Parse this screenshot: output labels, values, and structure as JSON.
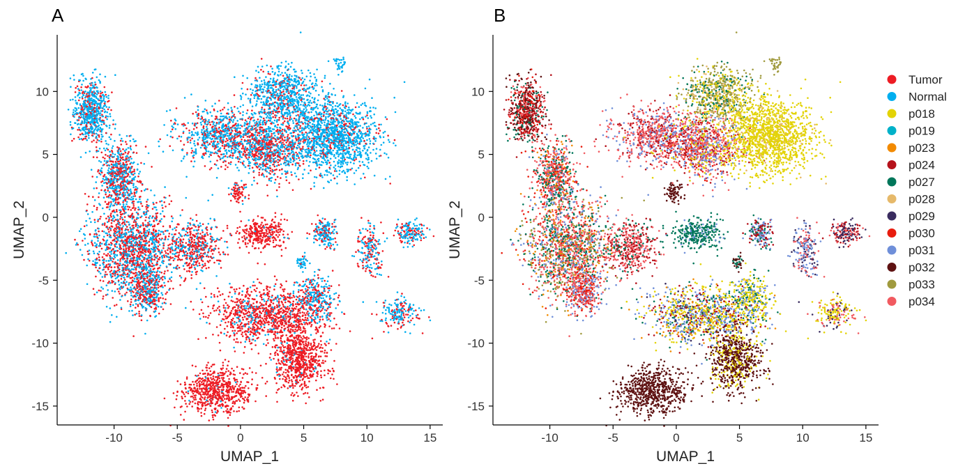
{
  "figure": {
    "panels": [
      {
        "tag": "A"
      },
      {
        "tag": "B"
      }
    ]
  },
  "legend": {
    "entries": [
      {
        "label": "Tumor",
        "color": "#ED1C24"
      },
      {
        "label": "Normal",
        "color": "#00AEEF"
      },
      {
        "label": "p018",
        "color": "#E3D306"
      },
      {
        "label": "p019",
        "color": "#00B1C9"
      },
      {
        "label": "p023",
        "color": "#F28A00"
      },
      {
        "label": "p024",
        "color": "#B5121B"
      },
      {
        "label": "p027",
        "color": "#00765A"
      },
      {
        "label": "p028",
        "color": "#E6B96A"
      },
      {
        "label": "p029",
        "color": "#3A2C5F"
      },
      {
        "label": "p030",
        "color": "#E81C0E"
      },
      {
        "label": "p031",
        "color": "#6F8FD9"
      },
      {
        "label": "p032",
        "color": "#5E1212"
      },
      {
        "label": "p033",
        "color": "#A09A3E"
      },
      {
        "label": "p034",
        "color": "#F15A60"
      }
    ]
  },
  "chart_data": [
    {
      "type": "scatter",
      "panel": "A",
      "xlabel": "UMAP_1",
      "ylabel": "UMAP_2",
      "xlim": [
        -14.5,
        16
      ],
      "ylim": [
        -16.5,
        14.5
      ],
      "xticks": [
        -10,
        -5,
        0,
        5,
        10,
        15
      ],
      "yticks": [
        -15,
        -10,
        -5,
        0,
        5,
        10
      ],
      "color_by": "tissue",
      "clusters": [
        {
          "name": "left-arm",
          "x": -11.8,
          "y": 8.4,
          "sx": 0.7,
          "sy": 1.2,
          "n": 650,
          "mix": {
            "Normal": 0.75,
            "Tumor": 0.25
          }
        },
        {
          "name": "left-arm-mid",
          "x": -9.6,
          "y": 3.2,
          "sx": 0.8,
          "sy": 1.4,
          "n": 650,
          "mix": {
            "Normal": 0.5,
            "Tumor": 0.5
          }
        },
        {
          "name": "left-body",
          "x": -8.5,
          "y": -2.5,
          "sx": 1.7,
          "sy": 1.9,
          "n": 1500,
          "mix": {
            "Tumor": 0.55,
            "Normal": 0.45
          }
        },
        {
          "name": "left-tail",
          "x": -7.3,
          "y": -5.8,
          "sx": 0.7,
          "sy": 0.9,
          "n": 350,
          "mix": {
            "Tumor": 0.5,
            "Normal": 0.5
          }
        },
        {
          "name": "left-shoulder",
          "x": -3.5,
          "y": -2.3,
          "sx": 1.0,
          "sy": 1.0,
          "n": 450,
          "mix": {
            "Tumor": 0.65,
            "Normal": 0.35
          }
        },
        {
          "name": "top-left-lobe",
          "x": -1.5,
          "y": 6.5,
          "sx": 1.7,
          "sy": 1.1,
          "n": 700,
          "mix": {
            "Normal": 0.6,
            "Tumor": 0.4
          }
        },
        {
          "name": "top-center",
          "x": 2.2,
          "y": 5.6,
          "sx": 1.6,
          "sy": 1.2,
          "n": 900,
          "mix": {
            "Tumor": 0.5,
            "Normal": 0.5
          }
        },
        {
          "name": "top-peak",
          "x": 3.2,
          "y": 9.7,
          "sx": 1.3,
          "sy": 1.1,
          "n": 700,
          "mix": {
            "Normal": 0.8,
            "Tumor": 0.2
          }
        },
        {
          "name": "top-right",
          "x": 7.3,
          "y": 6.5,
          "sx": 1.8,
          "sy": 1.5,
          "n": 1400,
          "mix": {
            "Normal": 0.85,
            "Tumor": 0.15
          }
        },
        {
          "name": "small-top",
          "x": 7.8,
          "y": 12.2,
          "sx": 0.25,
          "sy": 0.35,
          "n": 35,
          "mix": {
            "Normal": 1.0
          }
        },
        {
          "name": "center-stub",
          "x": -0.1,
          "y": 2.0,
          "sx": 0.35,
          "sy": 0.4,
          "n": 80,
          "mix": {
            "Tumor": 0.8,
            "Normal": 0.2
          }
        },
        {
          "name": "center-blob",
          "x": 1.7,
          "y": -1.3,
          "sx": 1.0,
          "sy": 0.6,
          "n": 300,
          "mix": {
            "Tumor": 0.95,
            "Normal": 0.05
          }
        },
        {
          "name": "island-1",
          "x": 6.6,
          "y": -1.3,
          "sx": 0.5,
          "sy": 0.6,
          "n": 180,
          "mix": {
            "Normal": 0.6,
            "Tumor": 0.4
          }
        },
        {
          "name": "island-2",
          "x": 10.2,
          "y": -2.6,
          "sx": 0.5,
          "sy": 1.1,
          "n": 180,
          "mix": {
            "Normal": 0.55,
            "Tumor": 0.45
          }
        },
        {
          "name": "island-3",
          "x": 13.4,
          "y": -1.2,
          "sx": 0.6,
          "sy": 0.4,
          "n": 160,
          "mix": {
            "Normal": 0.6,
            "Tumor": 0.4
          }
        },
        {
          "name": "island-4",
          "x": 4.8,
          "y": -3.6,
          "sx": 0.2,
          "sy": 0.3,
          "n": 40,
          "mix": {
            "Normal": 0.9,
            "Tumor": 0.1
          }
        },
        {
          "name": "island-5",
          "x": 12.6,
          "y": -7.6,
          "sx": 0.8,
          "sy": 0.6,
          "n": 180,
          "mix": {
            "Normal": 0.55,
            "Tumor": 0.45
          }
        },
        {
          "name": "lower-arc",
          "x": 2.3,
          "y": -7.8,
          "sx": 2.2,
          "sy": 1.1,
          "n": 1100,
          "mix": {
            "Tumor": 0.85,
            "Normal": 0.15
          }
        },
        {
          "name": "lower-right-arm",
          "x": 6.0,
          "y": -6.3,
          "sx": 0.8,
          "sy": 0.9,
          "n": 250,
          "mix": {
            "Normal": 0.65,
            "Tumor": 0.35
          }
        },
        {
          "name": "lower-center",
          "x": 4.6,
          "y": -11.3,
          "sx": 1.0,
          "sy": 1.2,
          "n": 700,
          "mix": {
            "Tumor": 0.95,
            "Normal": 0.05
          }
        },
        {
          "name": "lower-left-blob",
          "x": -1.8,
          "y": -13.8,
          "sx": 1.4,
          "sy": 0.9,
          "n": 650,
          "mix": {
            "Tumor": 0.97,
            "Normal": 0.03
          }
        }
      ]
    },
    {
      "type": "scatter",
      "panel": "B",
      "xlabel": "UMAP_1",
      "ylabel": "UMAP_2",
      "xlim": [
        -14.5,
        16
      ],
      "ylim": [
        -16.5,
        14.5
      ],
      "xticks": [
        -10,
        -5,
        0,
        5,
        10,
        15
      ],
      "yticks": [
        -15,
        -10,
        -5,
        0,
        5,
        10
      ],
      "color_by": "patient",
      "clusters": [
        {
          "name": "left-arm",
          "x": -11.8,
          "y": 8.4,
          "sx": 0.7,
          "sy": 1.2,
          "n": 650,
          "mix": {
            "p024": 0.3,
            "p032": 0.25,
            "p030": 0.15,
            "p027": 0.15,
            "p034": 0.15
          }
        },
        {
          "name": "left-arm-mid",
          "x": -9.6,
          "y": 3.2,
          "sx": 0.8,
          "sy": 1.4,
          "n": 650,
          "mix": {
            "p034": 0.35,
            "p027": 0.25,
            "p030": 0.2,
            "p031": 0.1,
            "p023": 0.1
          }
        },
        {
          "name": "left-body",
          "x": -8.5,
          "y": -2.5,
          "sx": 1.7,
          "sy": 1.9,
          "n": 1500,
          "mix": {
            "p034": 0.3,
            "p027": 0.2,
            "p031": 0.15,
            "p030": 0.1,
            "p023": 0.1,
            "p033": 0.15
          }
        },
        {
          "name": "left-tail",
          "x": -7.3,
          "y": -5.8,
          "sx": 0.7,
          "sy": 0.9,
          "n": 350,
          "mix": {
            "p034": 0.4,
            "p031": 0.3,
            "p030": 0.3
          }
        },
        {
          "name": "left-shoulder",
          "x": -3.5,
          "y": -2.3,
          "sx": 1.0,
          "sy": 1.0,
          "n": 450,
          "mix": {
            "p034": 0.5,
            "p024": 0.3,
            "p027": 0.2
          }
        },
        {
          "name": "top-left-lobe",
          "x": -1.5,
          "y": 6.5,
          "sx": 1.7,
          "sy": 1.1,
          "n": 700,
          "mix": {
            "p034": 0.5,
            "p031": 0.25,
            "p024": 0.25
          }
        },
        {
          "name": "top-center",
          "x": 2.2,
          "y": 5.6,
          "sx": 1.6,
          "sy": 1.2,
          "n": 900,
          "mix": {
            "p034": 0.35,
            "p031": 0.25,
            "p018": 0.15,
            "p024": 0.15,
            "p030": 0.1
          }
        },
        {
          "name": "top-peak",
          "x": 3.2,
          "y": 9.7,
          "sx": 1.3,
          "sy": 1.1,
          "n": 700,
          "mix": {
            "p033": 0.45,
            "p027": 0.2,
            "p018": 0.2,
            "p028": 0.15
          }
        },
        {
          "name": "top-right",
          "x": 7.3,
          "y": 6.5,
          "sx": 1.8,
          "sy": 1.5,
          "n": 1400,
          "mix": {
            "p018": 0.92,
            "p028": 0.08
          }
        },
        {
          "name": "small-top",
          "x": 7.8,
          "y": 12.2,
          "sx": 0.25,
          "sy": 0.35,
          "n": 35,
          "mix": {
            "p033": 1.0
          }
        },
        {
          "name": "center-stub",
          "x": -0.1,
          "y": 2.0,
          "sx": 0.35,
          "sy": 0.4,
          "n": 80,
          "mix": {
            "p032": 1.0
          }
        },
        {
          "name": "center-blob",
          "x": 1.7,
          "y": -1.3,
          "sx": 1.0,
          "sy": 0.6,
          "n": 300,
          "mix": {
            "p027": 0.85,
            "p031": 0.15
          }
        },
        {
          "name": "island-1",
          "x": 6.6,
          "y": -1.3,
          "sx": 0.5,
          "sy": 0.6,
          "n": 180,
          "mix": {
            "p031": 0.4,
            "p024": 0.3,
            "p027": 0.3
          }
        },
        {
          "name": "island-2",
          "x": 10.2,
          "y": -2.6,
          "sx": 0.5,
          "sy": 1.1,
          "n": 180,
          "mix": {
            "p031": 0.4,
            "p029": 0.3,
            "p034": 0.3
          }
        },
        {
          "name": "island-3",
          "x": 13.4,
          "y": -1.2,
          "sx": 0.6,
          "sy": 0.4,
          "n": 160,
          "mix": {
            "p029": 0.4,
            "p024": 0.3,
            "p034": 0.3
          }
        },
        {
          "name": "island-4",
          "x": 4.8,
          "y": -3.6,
          "sx": 0.2,
          "sy": 0.3,
          "n": 40,
          "mix": {
            "p032": 0.5,
            "p027": 0.5
          }
        },
        {
          "name": "island-5",
          "x": 12.6,
          "y": -7.6,
          "sx": 0.8,
          "sy": 0.6,
          "n": 180,
          "mix": {
            "p018": 0.5,
            "p034": 0.3,
            "p029": 0.2
          }
        },
        {
          "name": "lower-arc",
          "x": 2.3,
          "y": -7.8,
          "sx": 2.2,
          "sy": 1.1,
          "n": 1100,
          "mix": {
            "p031": 0.3,
            "p018": 0.3,
            "p024": 0.15,
            "p023": 0.1,
            "p027": 0.1,
            "p029": 0.05
          }
        },
        {
          "name": "lower-right-arm",
          "x": 6.0,
          "y": -6.3,
          "sx": 0.8,
          "sy": 0.9,
          "n": 250,
          "mix": {
            "p018": 0.6,
            "p027": 0.2,
            "p031": 0.2
          }
        },
        {
          "name": "lower-center",
          "x": 4.6,
          "y": -11.3,
          "sx": 1.0,
          "sy": 1.2,
          "n": 700,
          "mix": {
            "p032": 0.75,
            "p018": 0.25
          }
        },
        {
          "name": "lower-left-blob",
          "x": -1.8,
          "y": -13.8,
          "sx": 1.4,
          "sy": 0.9,
          "n": 650,
          "mix": {
            "p032": 1.0
          }
        }
      ]
    }
  ]
}
